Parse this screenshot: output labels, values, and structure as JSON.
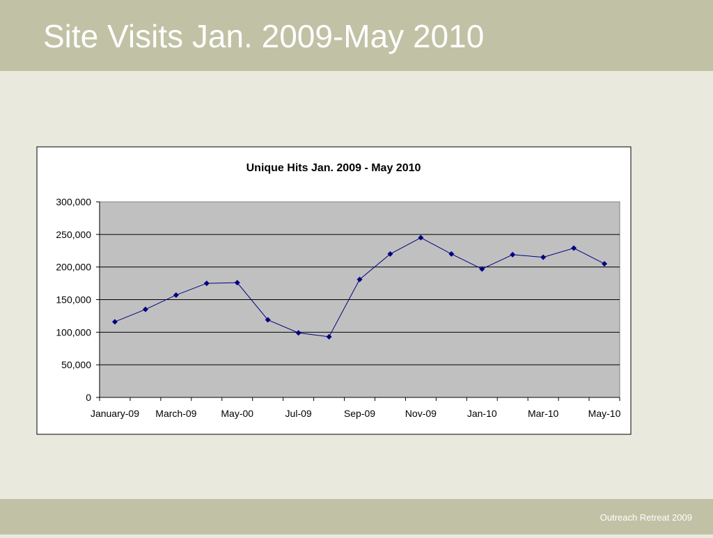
{
  "slide": {
    "title": "Site Visits Jan. 2009-May 2010",
    "footer": "Outreach Retreat 2009"
  },
  "chart_data": {
    "type": "line",
    "title": "Unique Hits Jan. 2009 - May 2010",
    "categories": [
      "January-09",
      null,
      "March-09",
      null,
      "May-00",
      null,
      "Jul-09",
      null,
      "Sep-09",
      null,
      "Nov-09",
      null,
      "Jan-10",
      null,
      "Mar-10",
      null,
      "May-10"
    ],
    "values": [
      116000,
      135000,
      157000,
      175000,
      176000,
      119000,
      99000,
      93000,
      181000,
      220000,
      245000,
      220000,
      197000,
      219000,
      215000,
      229000,
      205000
    ],
    "color": "#000080",
    "ylim": [
      0,
      300000
    ],
    "yticks": [
      0,
      {
        "value": 50000,
        "label": "50,000"
      },
      {
        "value": 100000,
        "label": "100,000"
      },
      {
        "value": 150000,
        "label": "150,000"
      },
      {
        "value": 200000,
        "label": "200,000"
      },
      {
        "value": 250000,
        "label": "250,000"
      },
      {
        "value": 300000,
        "label": "300,000"
      }
    ],
    "grid": true
  }
}
